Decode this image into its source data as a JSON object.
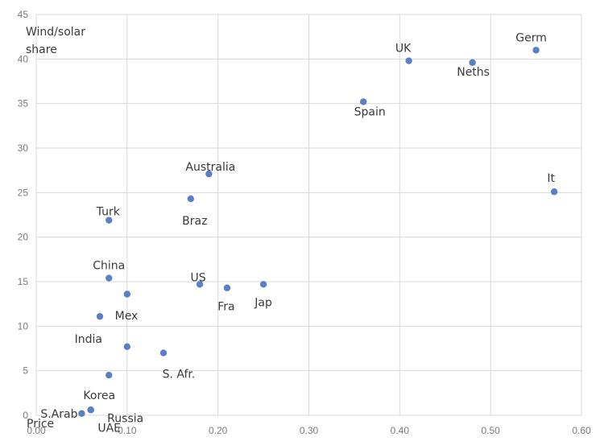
{
  "chart_data": {
    "type": "scatter",
    "xlabel": "Price",
    "ylabel": [
      "Wind/solar",
      "share"
    ],
    "xlim": [
      0,
      0.6
    ],
    "ylim": [
      0,
      45
    ],
    "xticks": [
      "0.00",
      "0.10",
      "0.20",
      "0.30",
      "0.40",
      "0.50",
      "0.60"
    ],
    "yticks": [
      "0",
      "5",
      "10",
      "15",
      "20",
      "25",
      "30",
      "35",
      "40",
      "45"
    ],
    "grid": true,
    "marker_color": "#5b7fc7",
    "points": [
      {
        "label": "Germ",
        "x": 0.55,
        "y": 41.0
      },
      {
        "label": "UK",
        "x": 0.41,
        "y": 39.8
      },
      {
        "label": "Neths",
        "x": 0.48,
        "y": 39.6
      },
      {
        "label": "Spain",
        "x": 0.36,
        "y": 35.2
      },
      {
        "label": "Australia",
        "x": 0.19,
        "y": 27.1
      },
      {
        "label": "It",
        "x": 0.57,
        "y": 25.1
      },
      {
        "label": "Braz",
        "x": 0.17,
        "y": 24.3
      },
      {
        "label": "Turk",
        "x": 0.08,
        "y": 21.9
      },
      {
        "label": "China",
        "x": 0.08,
        "y": 15.4
      },
      {
        "label": "US",
        "x": 0.18,
        "y": 14.7
      },
      {
        "label": "Jap",
        "x": 0.25,
        "y": 14.7
      },
      {
        "label": "Fra",
        "x": 0.21,
        "y": 14.3
      },
      {
        "label": "",
        "x": 0.1,
        "y": 13.6
      },
      {
        "label": "Mex",
        "x": 0.07,
        "y": 11.1
      },
      {
        "label": "India",
        "x": 0.1,
        "y": 7.7
      },
      {
        "label": "S. Afr.",
        "x": 0.14,
        "y": 7.0
      },
      {
        "label": "Korea",
        "x": 0.08,
        "y": 4.5
      },
      {
        "label": "UAE",
        "x": 0.06,
        "y": 0.6
      },
      {
        "label": "Russia",
        "x": 0.06,
        "y": 0.6
      },
      {
        "label": "S.Arab",
        "x": 0.05,
        "y": 0.2
      }
    ]
  }
}
